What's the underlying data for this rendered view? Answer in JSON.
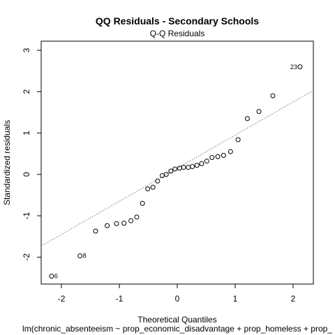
{
  "chart_data": {
    "type": "scatter",
    "title": "QQ Residuals - Secondary Schools",
    "subtitle": "Q-Q Residuals",
    "xlabel": "Theoretical Quantiles",
    "ylabel": "Standardized residuals",
    "caption": "lm(chronic_absenteeism ~ prop_economic_disadvantage + prop_homeless + prop_",
    "xlim": [
      -2.35,
      2.35
    ],
    "ylim": [
      -2.65,
      3.22
    ],
    "xticks": [
      -2,
      -1,
      0,
      1,
      2
    ],
    "yticks": [
      -2,
      -1,
      0,
      1,
      2,
      3
    ],
    "reference_line": {
      "intercept": 0.15,
      "slope": 0.8
    },
    "grid": false,
    "points": [
      {
        "x": -2.17,
        "y": -2.46,
        "label": "6"
      },
      {
        "x": -1.68,
        "y": -1.97,
        "label": "8"
      },
      {
        "x": -1.41,
        "y": -1.37
      },
      {
        "x": -1.21,
        "y": -1.24
      },
      {
        "x": -1.05,
        "y": -1.19
      },
      {
        "x": -0.92,
        "y": -1.18
      },
      {
        "x": -0.8,
        "y": -1.12
      },
      {
        "x": -0.7,
        "y": -1.03
      },
      {
        "x": -0.6,
        "y": -0.7
      },
      {
        "x": -0.51,
        "y": -0.35
      },
      {
        "x": -0.42,
        "y": -0.31
      },
      {
        "x": -0.34,
        "y": -0.16
      },
      {
        "x": -0.26,
        "y": -0.03
      },
      {
        "x": -0.19,
        "y": 0.0
      },
      {
        "x": -0.11,
        "y": 0.08
      },
      {
        "x": -0.04,
        "y": 0.13
      },
      {
        "x": 0.04,
        "y": 0.15
      },
      {
        "x": 0.11,
        "y": 0.17
      },
      {
        "x": 0.19,
        "y": 0.17
      },
      {
        "x": 0.26,
        "y": 0.19
      },
      {
        "x": 0.34,
        "y": 0.22
      },
      {
        "x": 0.42,
        "y": 0.26
      },
      {
        "x": 0.51,
        "y": 0.32
      },
      {
        "x": 0.6,
        "y": 0.41
      },
      {
        "x": 0.7,
        "y": 0.43
      },
      {
        "x": 0.8,
        "y": 0.46
      },
      {
        "x": 0.92,
        "y": 0.55
      },
      {
        "x": 1.05,
        "y": 0.84
      },
      {
        "x": 1.21,
        "y": 1.35
      },
      {
        "x": 1.41,
        "y": 1.52
      },
      {
        "x": 1.65,
        "y": 1.9
      },
      {
        "x": 2.12,
        "y": 2.6,
        "label": "23"
      }
    ]
  }
}
